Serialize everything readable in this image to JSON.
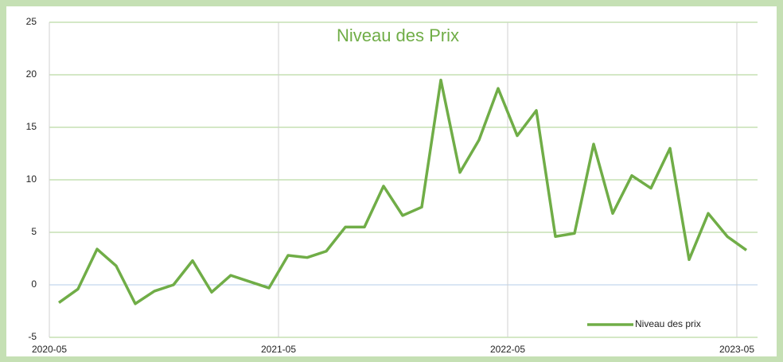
{
  "chart_data": {
    "type": "line",
    "title": "Niveau des Prix",
    "x": [
      "2020-05",
      "2020-06",
      "2020-07",
      "2020-08",
      "2020-09",
      "2020-10",
      "2020-11",
      "2020-12",
      "2021-01",
      "2021-02",
      "2021-03",
      "2021-04",
      "2021-05",
      "2021-06",
      "2021-07",
      "2021-08",
      "2021-09",
      "2021-10",
      "2021-11",
      "2021-12",
      "2022-01",
      "2022-02",
      "2022-03",
      "2022-04",
      "2022-05",
      "2022-06",
      "2022-07",
      "2022-08",
      "2022-09",
      "2022-10",
      "2022-11",
      "2022-12",
      "2023-01",
      "2023-02",
      "2023-03",
      "2023-04",
      "2023-05"
    ],
    "series": [
      {
        "name": "Niveau des prix",
        "color": "#70ad47",
        "values": [
          -1.7,
          -0.4,
          3.4,
          1.8,
          -1.8,
          -0.6,
          0.0,
          2.3,
          -0.7,
          0.9,
          0.3,
          -0.3,
          2.8,
          2.6,
          3.2,
          5.5,
          5.5,
          9.4,
          6.6,
          7.4,
          19.5,
          10.7,
          13.8,
          18.7,
          14.2,
          16.6,
          4.6,
          4.9,
          13.4,
          6.8,
          10.4,
          9.2,
          13.0,
          2.4,
          6.8,
          4.6,
          3.3
        ]
      }
    ],
    "xticks": [
      "2020-05",
      "2021-05",
      "2022-05",
      "2023-05"
    ],
    "ylim": [
      -5,
      25
    ],
    "yticks": [
      -5,
      0,
      5,
      10,
      15,
      20,
      25
    ],
    "grid": true,
    "legend": "lower right"
  }
}
